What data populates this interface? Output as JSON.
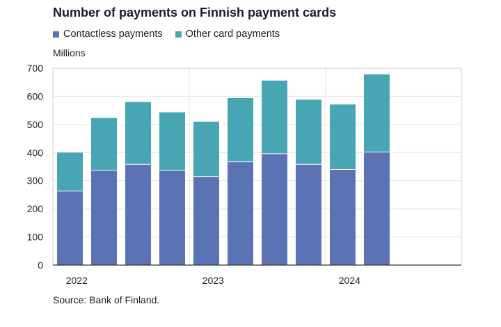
{
  "chart_data": {
    "type": "bar",
    "stacked": true,
    "title": "Number of payments on Finnish payment cards",
    "unit_label": "Millions",
    "source": "Source: Bank of Finland.",
    "ylim": [
      0,
      700
    ],
    "yticks": [
      0,
      100,
      200,
      300,
      400,
      500,
      600,
      700
    ],
    "xtick_labels": [
      "2022",
      "2023",
      "2024"
    ],
    "grid": true,
    "legend_position": "top-left",
    "categories": [
      "2022 Q1",
      "2022 Q2",
      "2022 Q3",
      "2022 Q4",
      "2023 Q1",
      "2023 Q2",
      "2023 Q3",
      "2023 Q4",
      "2024 Q1",
      "2024 Q2"
    ],
    "series": [
      {
        "name": "Contactless payments",
        "color": "#5b73b4",
        "values": [
          263,
          337,
          358,
          337,
          315,
          367,
          396,
          358,
          340,
          402
        ]
      },
      {
        "name": "Other card payments",
        "color": "#48a6b4",
        "values": [
          137,
          186,
          222,
          206,
          195,
          227,
          260,
          230,
          231,
          276
        ]
      }
    ]
  }
}
